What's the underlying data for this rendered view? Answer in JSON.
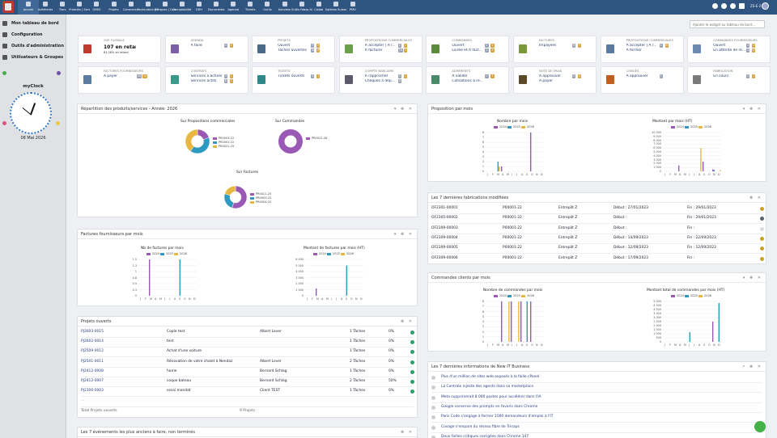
{
  "topbar": {
    "menus": [
      "Accueil",
      "Adhérents",
      "Tiers",
      "Produits | Services",
      "GPAO",
      "Projets",
      "Commerce",
      "Facturation | Paiement",
      "Banques | Caisses",
      "Comptabilité",
      "GRH",
      "Documents",
      "Agenda",
      "Tickets",
      "Outils",
      "Kanview",
      "Outils Fabas Ai",
      "Collab",
      "Salaires Suisses",
      "PMV"
    ],
    "user_initials": "ZS-E-2"
  },
  "sidebar": {
    "items": [
      "Mon tableau de bord",
      "Configuration",
      "Outils d'administration",
      "Utilisateurs & Groupes"
    ],
    "clock_title": "myClock",
    "clock_date": "08 Mai 2026"
  },
  "search": {
    "placeholder": "Ajouter le widget au tableau de bord..."
  },
  "cards": [
    {
      "title": "Vue globale",
      "rows": [
        "107 en retard",
        "81,26% en retard"
      ]
    },
    {
      "title": "Agenda",
      "rows": [
        "A faire"
      ],
      "badges": [
        "5",
        "1"
      ]
    },
    {
      "title": "Projets",
      "rows": [
        "Ouvert",
        "Tâches ouvertes"
      ],
      "badges": [
        "9",
        "3",
        "8",
        "8"
      ]
    },
    {
      "title": "Propositions commerciales",
      "rows": [
        "A accepter | A r...",
        "A facturer"
      ],
      "badges": [
        "2",
        "1",
        "10",
        "7"
      ]
    },
    {
      "title": "Commandes",
      "rows": [
        "Ouvert",
        "Livrée et A fact..."
      ],
      "badges": [
        "2",
        "1",
        "2",
        "1"
      ]
    },
    {
      "title": "Factures",
      "rows": [
        "Impayées"
      ],
      "badges": [
        "6",
        "7"
      ]
    },
    {
      "title": "Propositions commerciales",
      "rows": [
        "A accepter | A r...",
        "A fermer"
      ],
      "badges": [
        "1",
        "0"
      ]
    },
    {
      "title": "Commandes fournisseurs",
      "rows": [
        "Ouvert",
        "En attente de ré..."
      ],
      "badges": [
        "1",
        "0",
        "1",
        "0"
      ]
    },
    {
      "title": "Factures fournisseurs",
      "rows": [
        "A payer"
      ],
      "badges": [
        "25",
        "15"
      ]
    },
    {
      "title": "Contrats",
      "rows": [
        "Services à activer",
        "Services actifs"
      ],
      "badges": [
        "0",
        "1",
        "6",
        "1"
      ]
    },
    {
      "title": "Tickets",
      "rows": [
        "Tickets ouverts"
      ],
      "badges": [
        "5",
        "1"
      ]
    },
    {
      "title": "Compte bancaire",
      "rows": [
        "A rapprocher",
        "Chèques à dép..."
      ],
      "badges": [
        "5",
        "1",
        "0"
      ]
    },
    {
      "title": "Adhérents",
      "rows": [
        "A valider",
        "Cotisations à re..."
      ],
      "badges": [
        "0",
        "1"
      ]
    },
    {
      "title": "Note de frais",
      "rows": [
        "A approuver",
        "A payer"
      ],
      "badges": [
        "0",
        "0"
      ]
    },
    {
      "title": "Congés",
      "rows": [
        "A approuver"
      ],
      "badges": [
        "1"
      ]
    },
    {
      "title": "Fabrication",
      "rows": [
        "En cours"
      ],
      "badges": [
        "5",
        "1"
      ]
    }
  ],
  "panels": {
    "repartition": {
      "title": "Répartition des produits/services - Année: 2026"
    },
    "factfourn": {
      "title": "Factures fournisseurs par mois"
    },
    "projets": {
      "title": "Projets ouverts",
      "footer_label": "Total Projets ouverts",
      "footer_value": "9 Projets",
      "more": "..."
    },
    "events": {
      "title": "Les 7 événements les plus anciens à faire, non terminés"
    },
    "propmois": {
      "title": "Proposition par mois"
    },
    "fabrications": {
      "title": "Les 7 dernières fabrications modifiées"
    },
    "cmdclients": {
      "title": "Commandes clients par mois"
    },
    "news": {
      "title": "Les 7 dernières informations de New IT Business"
    }
  },
  "colors": {
    "c2024": "#9b59b6",
    "c2025": "#2e9ac0",
    "c2026": "#e8b740"
  },
  "chart_data": [
    {
      "type": "pie",
      "title": "Sur Propositions commerciales",
      "series": [
        {
          "name": "PR0003-22",
          "value": 20
        },
        {
          "name": "PR0001-22",
          "value": 40
        },
        {
          "name": "PR0021-25",
          "value": 40
        }
      ]
    },
    {
      "type": "pie",
      "title": "Sur Commandes",
      "series": [
        {
          "name": "PR0022-26",
          "value": 100
        }
      ]
    },
    {
      "type": "pie",
      "title": "Sur Factures",
      "series": [
        {
          "name": "PR0021-25",
          "value": 55
        },
        {
          "name": "PR0003-22",
          "value": 25
        },
        {
          "name": "PR0004-22",
          "value": 20
        }
      ]
    },
    {
      "type": "bar",
      "title": "Nombre par mois",
      "categories": [
        "J",
        "F",
        "M",
        "A",
        "M",
        "J",
        "J",
        "A",
        "S",
        "O",
        "N",
        "D"
      ],
      "ylim": [
        0,
        8
      ],
      "yticks": [
        "0",
        "1",
        "2",
        "3",
        "4",
        "5",
        "6",
        "7",
        "8"
      ],
      "series": [
        {
          "name": "2024",
          "values": [
            0,
            0,
            0,
            1,
            0,
            0,
            0,
            0,
            0,
            0,
            0,
            0
          ]
        },
        {
          "name": "2025",
          "values": [
            0,
            0,
            2,
            0,
            0,
            0,
            0,
            0,
            0,
            0,
            0,
            0
          ]
        },
        {
          "name": "2026",
          "values": [
            0,
            0,
            1,
            0,
            0,
            0,
            0,
            0,
            0,
            0,
            0,
            0
          ]
        }
      ],
      "extra": [
        {
          "series": "2024",
          "values": [
            0,
            0,
            0,
            0,
            0,
            0,
            0,
            0,
            0,
            8,
            0,
            0
          ]
        }
      ]
    },
    {
      "type": "bar",
      "title": "Montant par mois (HT)",
      "categories": [
        "J",
        "F",
        "M",
        "A",
        "M",
        "J",
        "J",
        "A",
        "S",
        "O",
        "N",
        "D"
      ],
      "ylim": [
        0,
        10000
      ],
      "yticks": [
        "0",
        "1 000",
        "2 000",
        "3 000",
        "4 000",
        "5 000",
        "6 000",
        "7 000",
        "8 000",
        "9 000",
        "10 000"
      ],
      "series": [
        {
          "name": "2024",
          "values": [
            0,
            0,
            0,
            1500,
            0,
            0,
            0,
            0,
            2500,
            0,
            500,
            0
          ]
        },
        {
          "name": "2025",
          "values": [
            0,
            0,
            0,
            0,
            0,
            0,
            0,
            0,
            0,
            0,
            400,
            0
          ]
        },
        {
          "name": "2026",
          "values": [
            0,
            0,
            0,
            0,
            0,
            0,
            0,
            6000,
            0,
            0,
            0,
            300
          ]
        }
      ]
    },
    {
      "type": "bar",
      "title": "Nb de factures par mois",
      "categories": [
        "J",
        "F",
        "M",
        "A",
        "M",
        "J",
        "J",
        "A",
        "S",
        "O",
        "N",
        "D"
      ],
      "ylim": [
        0,
        1.5
      ],
      "yticks": [
        "0",
        "0.3",
        "0.5",
        "0.8",
        "1",
        "1.3",
        "1.5"
      ],
      "series": [
        {
          "name": "2024",
          "values": [
            0,
            0,
            1.5,
            0,
            0,
            0,
            0,
            0,
            0,
            0,
            0,
            0
          ]
        },
        {
          "name": "2025",
          "values": [
            0,
            0,
            0,
            0,
            0,
            0,
            0,
            0,
            1.5,
            0,
            0,
            0
          ]
        },
        {
          "name": "2026",
          "values": [
            0,
            0,
            0,
            0,
            0,
            0,
            0,
            0,
            0,
            0,
            0,
            0
          ]
        }
      ]
    },
    {
      "type": "bar",
      "title": "Montant de factures par mois (HT)",
      "categories": [
        "J",
        "F",
        "M",
        "A",
        "M",
        "J",
        "J",
        "A",
        "S",
        "O",
        "N",
        "D"
      ],
      "ylim": [
        0,
        6000
      ],
      "yticks": [
        "0",
        "1 000",
        "2 000",
        "3 000",
        "4 000",
        "5 000",
        "6 000"
      ],
      "series": [
        {
          "name": "2024",
          "values": [
            0,
            0,
            1200,
            0,
            0,
            0,
            0,
            0,
            0,
            0,
            0,
            0
          ]
        },
        {
          "name": "2025",
          "values": [
            0,
            0,
            0,
            0,
            0,
            0,
            0,
            0,
            5000,
            0,
            0,
            0
          ]
        },
        {
          "name": "2026",
          "values": [
            0,
            0,
            0,
            0,
            0,
            0,
            0,
            0,
            0,
            0,
            0,
            0
          ]
        }
      ]
    },
    {
      "type": "bar",
      "title": "Nombre de commandes par mois",
      "categories": [
        "J",
        "F",
        "M",
        "A",
        "M",
        "J",
        "J",
        "A",
        "S",
        "O",
        "N",
        "D"
      ],
      "ylim": [
        0,
        8
      ],
      "yticks": [
        "0",
        "1",
        "2",
        "3",
        "4",
        "5",
        "6",
        "7",
        "8"
      ],
      "series": [
        {
          "name": "2024",
          "values": [
            0,
            0,
            0,
            8,
            0,
            8,
            0,
            8,
            0,
            8,
            0,
            0
          ]
        },
        {
          "name": "2025",
          "values": [
            0,
            0,
            0,
            0,
            0,
            0,
            0,
            0,
            8,
            0,
            0,
            0
          ]
        },
        {
          "name": "2026",
          "values": [
            0,
            0,
            0,
            0,
            8,
            0,
            8,
            0,
            0,
            0,
            0,
            0
          ]
        }
      ]
    },
    {
      "type": "bar",
      "title": "Montant total de commandes par mois (HT)",
      "categories": [
        "J",
        "F",
        "M",
        "A",
        "M",
        "J",
        "J",
        "A",
        "S",
        "O",
        "N",
        "D"
      ],
      "ylim": [
        0,
        5000
      ],
      "yticks": [
        "0",
        "500",
        "1 000",
        "1 500",
        "2 000",
        "2 500",
        "3 000",
        "3 500",
        "4 000",
        "4 500",
        "5 000"
      ],
      "series": [
        {
          "name": "2024",
          "values": [
            0,
            0,
            0,
            0,
            0,
            0,
            0,
            0,
            0,
            0,
            2500,
            0
          ]
        },
        {
          "name": "2025",
          "values": [
            0,
            0,
            0,
            0,
            0,
            1200,
            0,
            0,
            0,
            0,
            0,
            4800
          ]
        },
        {
          "name": "2026",
          "values": [
            0,
            0,
            0,
            0,
            0,
            0,
            0,
            0,
            0,
            0,
            0,
            0
          ]
        }
      ]
    }
  ],
  "projects": [
    {
      "ref": "PJ2603-0015",
      "label": "Cople test",
      "owner": "Albert Lever",
      "tasks": "1 Tâches",
      "pct": "0%"
    },
    {
      "ref": "PJ2602-0014",
      "label": "test",
      "owner": "",
      "tasks": "1 Tâches",
      "pct": "0%"
    },
    {
      "ref": "PJ2509-0012",
      "label": "Achat d'une voiture",
      "owner": "",
      "tasks": "1 Tâches",
      "pct": "0%"
    },
    {
      "ref": "PJ2501-0011",
      "label": "Rénovation de votre chalet à Nendaz",
      "owner": "Albert Lever",
      "tasks": "2 Tâches",
      "pct": "0%"
    },
    {
      "ref": "PJ2412-0008",
      "label": "home",
      "owner": "Bernard Schlag",
      "tasks": "1 Tâches",
      "pct": "0%"
    },
    {
      "ref": "PJ2412-0007",
      "label": "coque bateau",
      "owner": "Bernard Schlag",
      "tasks": "2 Tâches",
      "pct": "50%"
    },
    {
      "ref": "PJ2306-0003",
      "label": "essai mandat",
      "owner": "Client TEST",
      "tasks": "1 Tâches",
      "pct": "0%"
    }
  ],
  "fabrications": [
    {
      "ref": "OF2301-00001",
      "product": "P00001-22",
      "warehouse": "Entrepôt Z",
      "start": "Début : 27/01/2023",
      "end": "Fin : 29/01/2023",
      "status": "#c9a227"
    },
    {
      "ref": "OF2305-00002",
      "product": "P00001-22",
      "warehouse": "Entrepôt Z",
      "start": "Début :",
      "end": "Fin : 29/01/2023",
      "status": "#5a6270"
    },
    {
      "ref": "OF2309-00003",
      "product": "P00001-22",
      "warehouse": "Entrepôt Z",
      "start": "Début :",
      "end": "Fin :",
      "status": "#d8dbe0"
    },
    {
      "ref": "OF2309-00004",
      "product": "P00001-22",
      "warehouse": "Entrepôt Z",
      "start": "Début : 14/09/2023",
      "end": "Fin : 22/09/2023",
      "status": "#c9a227"
    },
    {
      "ref": "OF2309-00005",
      "product": "P00001-22",
      "warehouse": "Entrepôt Z",
      "start": "Début : 12/09/2023",
      "end": "Fin : 12/09/2023",
      "status": "#c9a227"
    },
    {
      "ref": "OF2309-00006",
      "product": "P00001-22",
      "warehouse": "Entrepôt Z",
      "start": "Début : 17/09/2023",
      "end": "Fin :",
      "status": "#c9a227"
    }
  ],
  "news": [
    "Plus d'un million de sites web exposés à la faille cPanel",
    "La Centrale injecte des agents dans sa marketplace",
    "Meta supprimerait 8 000 postes pour accélérer dans l'IA",
    "Google conserve des prompts en favoris dans Chrome",
    "Paris Code s'engage à former 1000 demandeurs d'emploi à l'IT",
    "Covage s'empare du réseau fibre de Trinaps",
    "Deux failles critiques corrigées dans Chrome 147"
  ]
}
